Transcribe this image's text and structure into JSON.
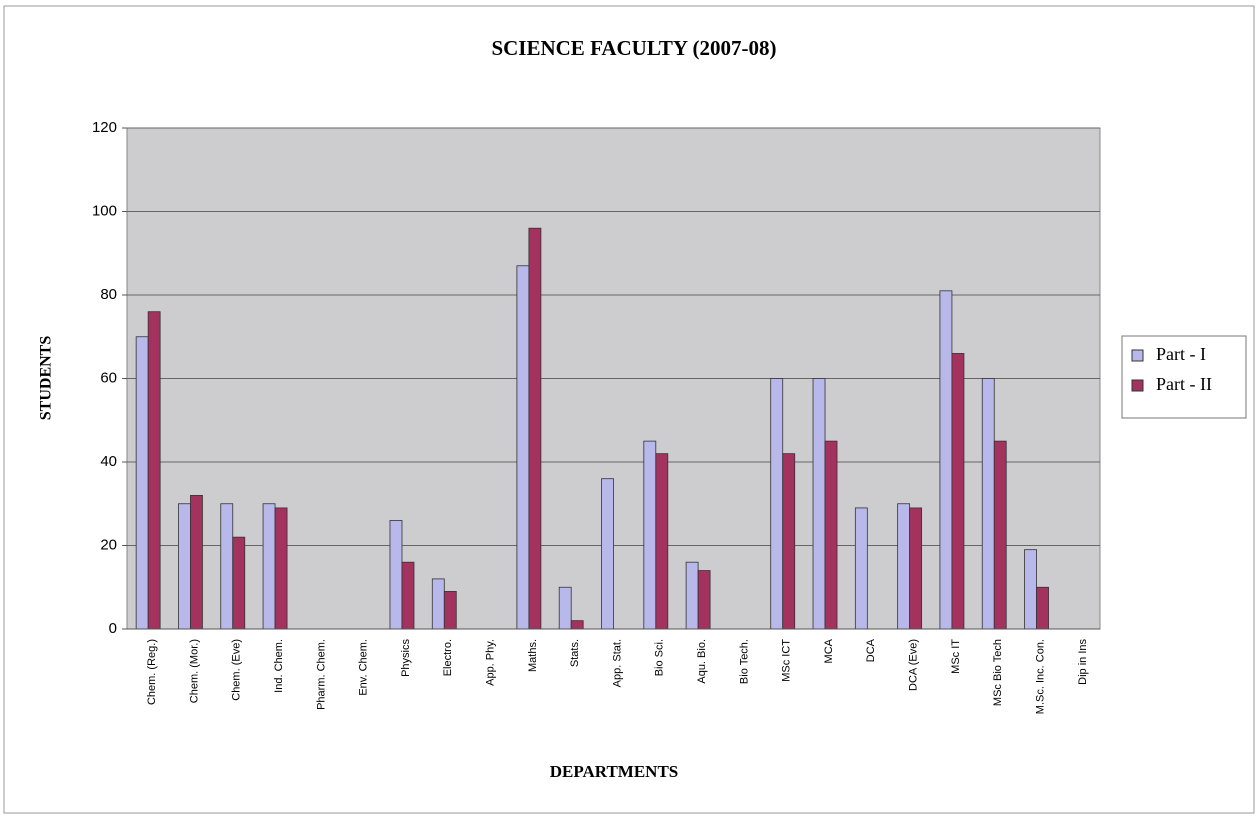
{
  "chart_data": {
    "type": "bar",
    "title": "SCIENCE FACULTY (2007-08)",
    "x_label": "DEPARTMENTS",
    "y_label": "STUDENTS",
    "categories": [
      "Chem. (Reg.)",
      "Chem. (Mor.)",
      "Chem. (Eve)",
      "Ind. Chem.",
      "Pharm. Chem.",
      "Env. Chem.",
      "Physics",
      "Electro.",
      "App. Phy.",
      "Maths.",
      "Stats.",
      "App. Stat.",
      "Bio Sci.",
      "Aqu. Bio.",
      "Bio Tech.",
      "MSc ICT",
      "MCA",
      "DCA",
      "DCA (Eve)",
      "MSc IT",
      "MSc Bio Tech",
      "M.Sc. Inc. Con.",
      "Dip in Ins"
    ],
    "series": [
      {
        "name": "Part - I",
        "color": "#b8b8ea",
        "values": [
          70,
          30,
          30,
          30,
          0,
          0,
          26,
          12,
          0,
          87,
          10,
          36,
          45,
          16,
          0,
          60,
          60,
          29,
          30,
          81,
          60,
          19,
          0
        ]
      },
      {
        "name": "Part - II",
        "color": "#a3325e",
        "values": [
          76,
          32,
          22,
          29,
          0,
          0,
          16,
          9,
          0,
          96,
          2,
          0,
          42,
          14,
          0,
          42,
          45,
          0,
          29,
          66,
          45,
          10,
          0
        ]
      }
    ],
    "ylim": [
      0,
      120
    ],
    "yticks": [
      0,
      20,
      40,
      60,
      80,
      100,
      120
    ],
    "grid": true,
    "legend": "right"
  }
}
